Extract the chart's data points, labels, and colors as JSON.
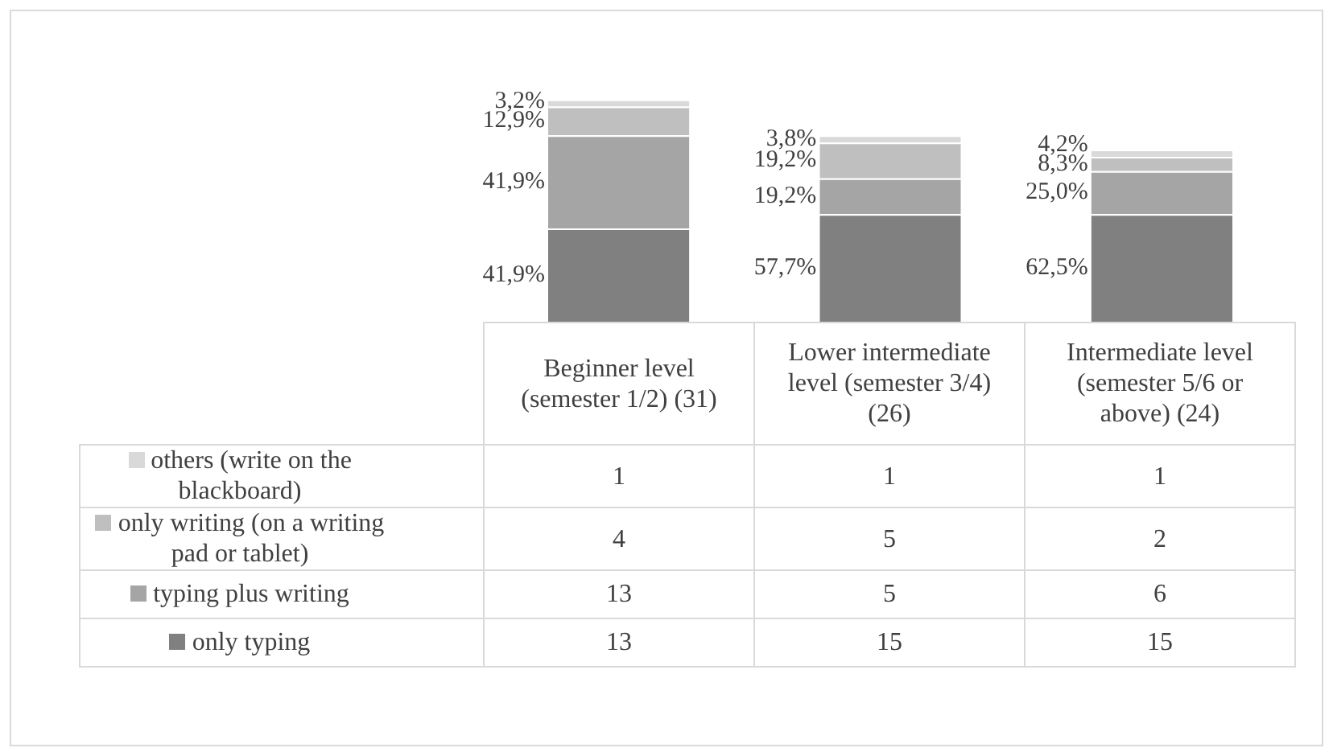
{
  "chart_data": {
    "type": "bar",
    "stacked": true,
    "legend": "bottom left",
    "data_labels": true,
    "categories": [
      "Beginner level (semester 1/2) (31)",
      "Lower intermediate level (semester 3/4)(26)",
      "Intermediate level (semester 5/6 or above) (24)"
    ],
    "series": [
      {
        "name": "only typing",
        "color": "#808080",
        "values": [
          13,
          15,
          15
        ]
      },
      {
        "name": "typing plus writing",
        "color": "#a5a5a5",
        "values": [
          13,
          5,
          6
        ]
      },
      {
        "name": "only writing (on a writing pad or tablet)",
        "color": "#bfbfbf",
        "values": [
          4,
          5,
          2
        ]
      },
      {
        "name": "others (write on the blackboard)",
        "color": "#d9d9d9",
        "values": [
          1,
          1,
          1
        ]
      }
    ],
    "annotations": [
      "41,9%",
      "41,9%",
      "12,9%",
      "3,2%",
      "57,7%",
      "19,2%",
      "19,2%",
      "3,8%",
      "62,5%",
      "25,0%",
      "8,3%",
      "4,2%"
    ]
  }
}
